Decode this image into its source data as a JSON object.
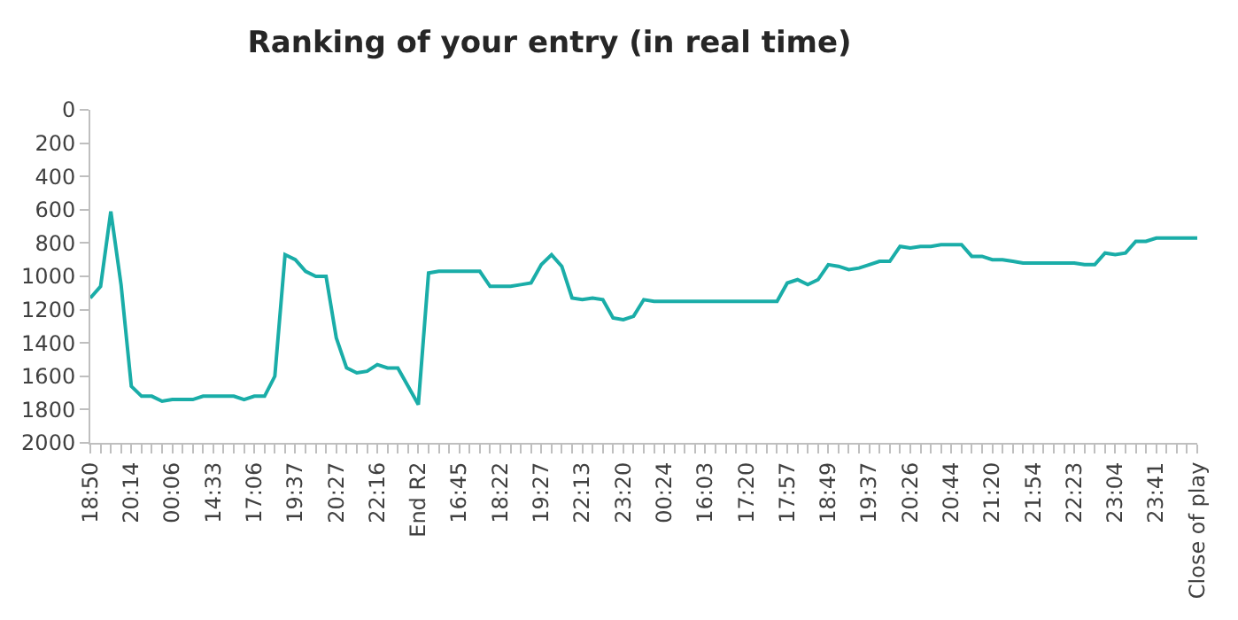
{
  "chart_data": {
    "type": "line",
    "title": "Ranking of your entry (in real time)",
    "categories": [
      "18:50",
      null,
      null,
      null,
      "20:14",
      null,
      null,
      null,
      "00:06",
      null,
      null,
      null,
      "14:33",
      null,
      null,
      null,
      "17:06",
      null,
      null,
      null,
      "19:37",
      null,
      null,
      null,
      "20:27",
      null,
      null,
      null,
      "22:16",
      null,
      null,
      null,
      "End R2",
      null,
      null,
      null,
      "16:45",
      null,
      null,
      null,
      "18:22",
      null,
      null,
      null,
      "19:27",
      null,
      null,
      null,
      "22:13",
      null,
      null,
      null,
      "23:20",
      null,
      null,
      null,
      "00:24",
      null,
      null,
      null,
      "16:03",
      null,
      null,
      null,
      "17:20",
      null,
      null,
      null,
      "17:57",
      null,
      null,
      null,
      "18:49",
      null,
      null,
      null,
      "19:37",
      null,
      null,
      null,
      "20:26",
      null,
      null,
      null,
      "20:44",
      null,
      null,
      null,
      "21:20",
      null,
      null,
      null,
      "21:54",
      null,
      null,
      null,
      "22:23",
      null,
      null,
      null,
      "23:04",
      null,
      null,
      null,
      "23:41",
      null,
      null,
      null,
      "Close of play"
    ],
    "series": [
      {
        "color": "#1aada8",
        "values": [
          1130,
          1060,
          610,
          1050,
          1660,
          1720,
          1720,
          1750,
          1740,
          1740,
          1740,
          1720,
          1720,
          1720,
          1720,
          1740,
          1720,
          1720,
          1600,
          870,
          900,
          970,
          1000,
          1000,
          1370,
          1550,
          1580,
          1570,
          1530,
          1550,
          1550,
          1660,
          1770,
          980,
          970,
          970,
          970,
          970,
          970,
          1060,
          1060,
          1060,
          1050,
          1040,
          930,
          870,
          940,
          1130,
          1140,
          1130,
          1140,
          1250,
          1260,
          1240,
          1140,
          1150,
          1150,
          1150,
          1150,
          1150,
          1150,
          1150,
          1150,
          1150,
          1150,
          1150,
          1150,
          1150,
          1040,
          1020,
          1050,
          1020,
          930,
          940,
          960,
          950,
          930,
          910,
          910,
          820,
          830,
          820,
          820,
          810,
          810,
          810,
          880,
          880,
          900,
          900,
          910,
          920,
          920,
          920,
          920,
          920,
          920,
          930,
          930,
          860,
          870,
          860,
          790,
          790,
          770,
          770,
          770,
          770,
          770
        ]
      }
    ],
    "ylim": [
      2000,
      0
    ],
    "yticks": [
      0,
      200,
      400,
      600,
      800,
      1000,
      1200,
      1400,
      1600,
      1800,
      2000
    ],
    "legend": false,
    "marker": "none",
    "line_style": "solid"
  }
}
